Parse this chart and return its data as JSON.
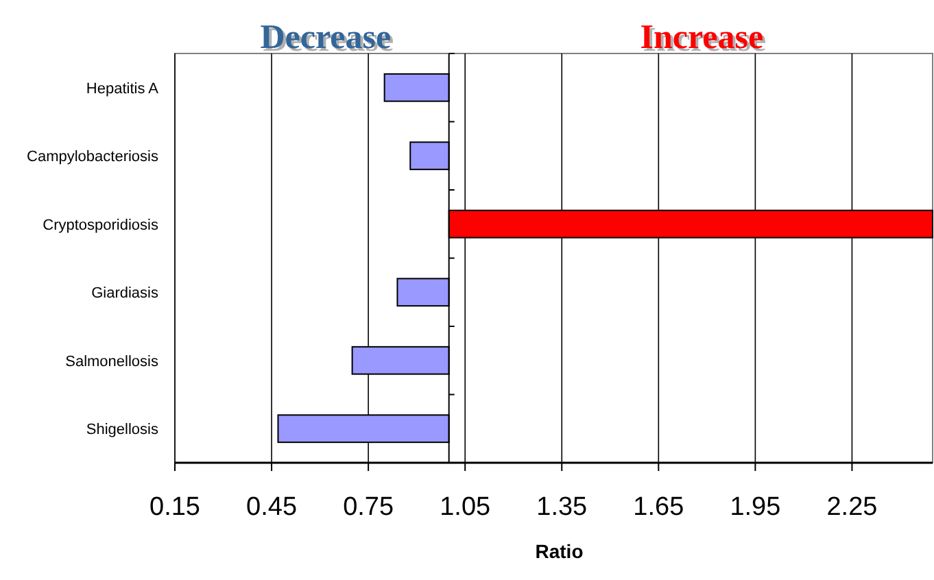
{
  "chart_data": {
    "type": "bar",
    "orientation": "horizontal",
    "xlabel": "Ratio",
    "categories": [
      "Hepatitis A",
      "Campylobacteriosis",
      "Cryptosporidiosis",
      "Giardiasis",
      "Salmonellosis",
      "Shigellosis"
    ],
    "base": [
      1,
      1,
      1,
      1,
      1,
      1
    ],
    "values": [
      -0.2,
      -0.12,
      1.5,
      -0.16,
      -0.3,
      -0.53
    ],
    "colors": [
      "#9999ff",
      "#9999ff",
      "#ff0000",
      "#9999ff",
      "#9999ff",
      "#9999ff"
    ],
    "xlim": [
      0.15,
      2.5
    ],
    "xticks": [
      0.15,
      0.45,
      0.75,
      1.05,
      1.35,
      1.65,
      1.95,
      2.25
    ],
    "grid": "x",
    "ref_lines": [
      {
        "axis": "x",
        "value": 1,
        "color": "#000000"
      }
    ],
    "annotations": [
      "Decrease",
      "Increase"
    ]
  }
}
